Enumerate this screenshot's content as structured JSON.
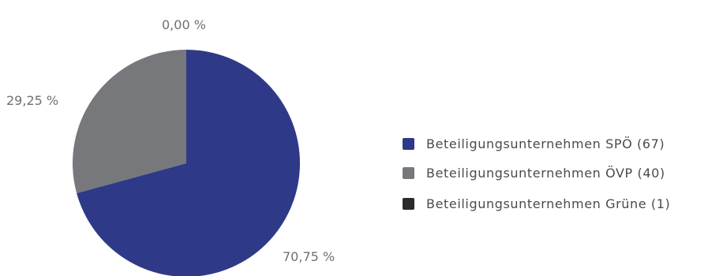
{
  "chart_data": {
    "type": "pie",
    "categories": [
      "Beteiligungsunternehmen SPÖ (67)",
      "Beteiligungsunternehmen ÖVP (40)",
      "Beteiligungsunternehmen Grüne (1)"
    ],
    "values": [
      70.75,
      29.25,
      0.0
    ],
    "slice_labels": [
      "70,75 %",
      "29,25 %",
      "0,00 %"
    ],
    "colors": [
      "#2e3a87",
      "#77787b",
      "#2b2b2b"
    ],
    "legend_placement": "right",
    "title": ""
  }
}
